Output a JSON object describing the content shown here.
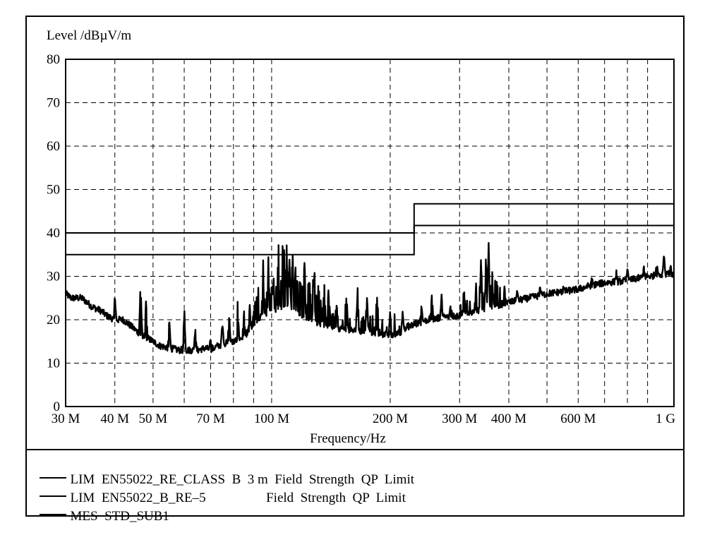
{
  "chart_data": {
    "type": "line",
    "ylabel": "Level /dBµV/m",
    "xlabel": "Frequency/Hz",
    "x_scale": "log",
    "xlim": [
      30,
      1050
    ],
    "ylim": [
      0,
      80
    ],
    "grid": true,
    "grid_style": "dashed",
    "y_ticks": [
      0,
      10,
      20,
      30,
      40,
      50,
      60,
      70,
      80
    ],
    "x_ticks": [
      {
        "value": 30,
        "label": "30 M"
      },
      {
        "value": 40,
        "label": "40 M"
      },
      {
        "value": 50,
        "label": "50 M"
      },
      {
        "value": 70,
        "label": "70 M"
      },
      {
        "value": 100,
        "label": "100 M"
      },
      {
        "value": 200,
        "label": "200 M"
      },
      {
        "value": 300,
        "label": "300 M"
      },
      {
        "value": 400,
        "label": "400 M"
      },
      {
        "value": 600,
        "label": "600 M"
      },
      {
        "value": 1000,
        "label": "1 G"
      }
    ],
    "x_gridlines": [
      40,
      50,
      60,
      70,
      80,
      90,
      100,
      200,
      300,
      400,
      500,
      600,
      700,
      800,
      900
    ],
    "series": [
      {
        "name": "LIM EN55022_RE_CLASS B 3 m Field Strength QP Limit",
        "color": "#000000",
        "points": [
          [
            30,
            40
          ],
          [
            230,
            40
          ],
          [
            230,
            46.7
          ],
          [
            1050,
            46.7
          ]
        ]
      },
      {
        "name": "LIM EN55022_B_RE–5 Field Strength QP Limit",
        "color": "#000000",
        "points": [
          [
            30,
            35
          ],
          [
            230,
            35
          ],
          [
            230,
            41.7
          ],
          [
            1050,
            41.7
          ]
        ]
      },
      {
        "name": "MES STD_SUB1",
        "color": "#000000",
        "points": [
          [
            30,
            26
          ],
          [
            31,
            25
          ],
          [
            33,
            25
          ],
          [
            35,
            23
          ],
          [
            37,
            22
          ],
          [
            38,
            21
          ],
          [
            40,
            20
          ],
          [
            42,
            20
          ],
          [
            44,
            18.5
          ],
          [
            46,
            17
          ],
          [
            48,
            16
          ],
          [
            50,
            15
          ],
          [
            52,
            14
          ],
          [
            55,
            13.5
          ],
          [
            58,
            13
          ],
          [
            62,
            13
          ],
          [
            65,
            13
          ],
          [
            68,
            13.5
          ],
          [
            70,
            13
          ],
          [
            73,
            14
          ],
          [
            76,
            14.5
          ],
          [
            80,
            15
          ],
          [
            85,
            16
          ],
          [
            90,
            19
          ],
          [
            95,
            21
          ],
          [
            100,
            22
          ],
          [
            105,
            23
          ],
          [
            110,
            23
          ],
          [
            115,
            22
          ],
          [
            120,
            21
          ],
          [
            130,
            19.5
          ],
          [
            140,
            18.5
          ],
          [
            150,
            18
          ],
          [
            160,
            17.5
          ],
          [
            180,
            17
          ],
          [
            200,
            16.5
          ],
          [
            210,
            17
          ],
          [
            220,
            18
          ],
          [
            230,
            19
          ],
          [
            250,
            20
          ],
          [
            270,
            20.5
          ],
          [
            300,
            21
          ],
          [
            330,
            22
          ],
          [
            360,
            23
          ],
          [
            400,
            24
          ],
          [
            450,
            25
          ],
          [
            500,
            26
          ],
          [
            550,
            26.5
          ],
          [
            600,
            27
          ],
          [
            650,
            28
          ],
          [
            700,
            28.5
          ],
          [
            800,
            29
          ],
          [
            900,
            30
          ],
          [
            1000,
            30.5
          ],
          [
            1050,
            30.5
          ]
        ],
        "peaks": [
          [
            40,
            26
          ],
          [
            46.5,
            31
          ],
          [
            48,
            25.5
          ],
          [
            55,
            20.5
          ],
          [
            60,
            24
          ],
          [
            64,
            19
          ],
          [
            70,
            16.5
          ],
          [
            75,
            20
          ],
          [
            78,
            22.5
          ],
          [
            82,
            25
          ],
          [
            85,
            23
          ],
          [
            88,
            24
          ],
          [
            92,
            27.5
          ],
          [
            95,
            30
          ],
          [
            98,
            33
          ],
          [
            101,
            31
          ],
          [
            104,
            35
          ],
          [
            107,
            38
          ],
          [
            109,
            40.5
          ],
          [
            111,
            36
          ],
          [
            113,
            37
          ],
          [
            115,
            34
          ],
          [
            118,
            32
          ],
          [
            121,
            36
          ],
          [
            124,
            33
          ],
          [
            128,
            31
          ],
          [
            132,
            28
          ],
          [
            136,
            30
          ],
          [
            140,
            27
          ],
          [
            146,
            25
          ],
          [
            155,
            28
          ],
          [
            165,
            26
          ],
          [
            175,
            25
          ],
          [
            185,
            24.5
          ],
          [
            200,
            23
          ],
          [
            215,
            22
          ],
          [
            240,
            24
          ],
          [
            255,
            27
          ],
          [
            270,
            26
          ],
          [
            285,
            25
          ],
          [
            310,
            25
          ],
          [
            330,
            29
          ],
          [
            340,
            34
          ],
          [
            350,
            36
          ],
          [
            355,
            37.5
          ],
          [
            362,
            35
          ],
          [
            370,
            31
          ],
          [
            390,
            28
          ],
          [
            420,
            27
          ],
          [
            480,
            28
          ],
          [
            550,
            28
          ],
          [
            650,
            30
          ],
          [
            750,
            31.5
          ],
          [
            800,
            32
          ],
          [
            880,
            33
          ],
          [
            950,
            34
          ],
          [
            990,
            35.5
          ],
          [
            1030,
            33
          ]
        ]
      }
    ]
  },
  "legend": [
    {
      "label": "LIM  EN55022_RE_CLASS  B  3 m  Field  Strength  QP  Limit"
    },
    {
      "label": "LIM  EN55022_B_RE–5                  Field  Strength  QP  Limit"
    },
    {
      "label": "MES  STD_SUB1"
    }
  ]
}
